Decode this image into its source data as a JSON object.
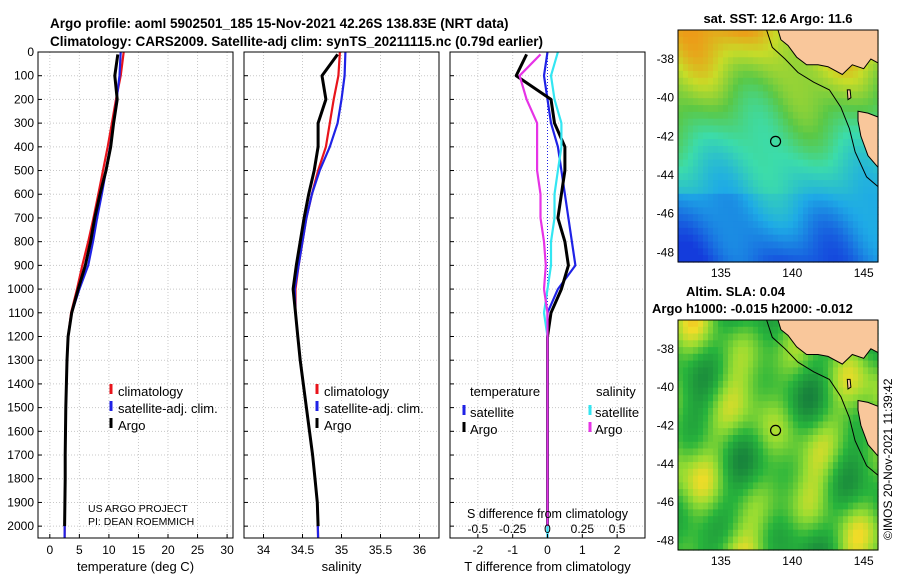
{
  "header": {
    "title_line1": "Argo profile: aoml 5902501_185 15-Nov-2021 42.26S 138.83E (NRT data)",
    "title_line2": "Climatology: CARS2009. Satellite-adj clim: synTS_20211115.nc (0.79d earlier)"
  },
  "colors": {
    "climatology": "#e8141b",
    "satellite_clim": "#1f22e6",
    "argo": "#000000",
    "sat_salinity": "#33e6f2",
    "argo_salinity": "#e633e6"
  },
  "chart_data": [
    {
      "type": "line",
      "id": "temperature",
      "xlabel": "temperature (deg C)",
      "xlim": [
        -2,
        31
      ],
      "ylim": [
        0,
        2050
      ],
      "xticks": [
        0,
        5,
        10,
        15,
        20,
        25,
        30
      ],
      "yticks": [
        0,
        100,
        200,
        300,
        400,
        500,
        600,
        700,
        800,
        900,
        1000,
        1100,
        1200,
        1300,
        1400,
        1500,
        1600,
        1700,
        1800,
        1900,
        2000
      ],
      "grid": true,
      "y_reversed": true,
      "legend": [
        "climatology",
        "satellite-adj. clim.",
        "Argo"
      ],
      "legend_position": "bottom-right",
      "annotations": [
        "US ARGO PROJECT",
        "PI: DEAN ROEMMICH"
      ],
      "series": [
        {
          "name": "climatology",
          "x": [
            12.5,
            12.0,
            11.2,
            10.5,
            9.8,
            9.0,
            8.2,
            7.4,
            6.5,
            5.5,
            4.6,
            3.6,
            3.1,
            2.9,
            2.8,
            2.7,
            2.65,
            2.6,
            2.6,
            2.55,
            2.5
          ],
          "y": [
            0,
            100,
            200,
            300,
            400,
            500,
            600,
            700,
            800,
            900,
            1000,
            1100,
            1200,
            1300,
            1400,
            1500,
            1600,
            1700,
            1800,
            1900,
            2050
          ]
        },
        {
          "name": "satellite-adj. clim.",
          "x": [
            12.0,
            11.8,
            11.3,
            10.8,
            10.2,
            9.5,
            8.8,
            8.0,
            7.3,
            6.5,
            5.0,
            3.7,
            3.1,
            2.9,
            2.8,
            2.7,
            2.65,
            2.6,
            2.6,
            2.55,
            2.5
          ],
          "y": [
            0,
            100,
            200,
            300,
            400,
            500,
            600,
            700,
            800,
            900,
            1000,
            1100,
            1200,
            1300,
            1400,
            1500,
            1600,
            1700,
            1800,
            1900,
            2050
          ]
        },
        {
          "name": "Argo",
          "x": [
            11.5,
            11.0,
            11.4,
            10.8,
            10.3,
            9.5,
            8.5,
            7.6,
            6.9,
            6.0,
            4.8,
            3.7,
            3.1,
            2.9,
            2.8,
            2.7,
            2.65,
            2.6,
            2.6,
            2.55,
            2.5
          ],
          "y": [
            10,
            100,
            200,
            300,
            400,
            500,
            600,
            700,
            800,
            900,
            1000,
            1100,
            1200,
            1300,
            1400,
            1500,
            1600,
            1700,
            1800,
            1900,
            2000
          ]
        }
      ]
    },
    {
      "type": "line",
      "id": "salinity",
      "xlabel": "salinity",
      "xlim": [
        33.75,
        36.25
      ],
      "ylim": [
        0,
        2050
      ],
      "xticks": [
        34,
        34.5,
        35,
        35.5,
        36
      ],
      "grid": true,
      "y_reversed": true,
      "legend": [
        "climatology",
        "satellite-adj. clim.",
        "Argo"
      ],
      "legend_position": "bottom-right",
      "series": [
        {
          "name": "climatology",
          "x": [
            34.98,
            34.96,
            34.9,
            34.85,
            34.8,
            34.7,
            34.62,
            34.55,
            34.5,
            34.45,
            34.41,
            34.41,
            34.44,
            34.47,
            34.51,
            34.55,
            34.59,
            34.63,
            34.66,
            34.69,
            34.7
          ],
          "y": [
            0,
            100,
            200,
            300,
            400,
            500,
            600,
            700,
            800,
            900,
            1000,
            1100,
            1200,
            1300,
            1400,
            1500,
            1600,
            1700,
            1800,
            1900,
            2050
          ]
        },
        {
          "name": "satellite-adj. clim.",
          "x": [
            35.05,
            35.04,
            35.0,
            34.95,
            34.85,
            34.72,
            34.62,
            34.55,
            34.5,
            34.45,
            34.4,
            34.41,
            34.44,
            34.47,
            34.51,
            34.55,
            34.59,
            34.63,
            34.66,
            34.69,
            34.7
          ],
          "y": [
            0,
            100,
            200,
            300,
            400,
            500,
            600,
            700,
            800,
            900,
            1000,
            1100,
            1200,
            1300,
            1400,
            1500,
            1600,
            1700,
            1800,
            1900,
            2050
          ]
        },
        {
          "name": "Argo",
          "x": [
            34.95,
            34.75,
            34.8,
            34.7,
            34.7,
            34.65,
            34.58,
            34.52,
            34.47,
            34.42,
            34.38,
            34.41,
            34.44,
            34.47,
            34.51,
            34.55,
            34.59,
            34.63,
            34.66,
            34.69,
            34.7
          ],
          "y": [
            10,
            100,
            200,
            300,
            400,
            500,
            600,
            700,
            800,
            900,
            1000,
            1100,
            1200,
            1300,
            1400,
            1500,
            1600,
            1700,
            1800,
            1900,
            2000
          ]
        }
      ]
    },
    {
      "type": "line",
      "id": "difference",
      "xlabel": "T difference from climatology",
      "top_label": "S difference from climatology",
      "xlim": [
        -2.8,
        2.8
      ],
      "ylim": [
        0,
        2050
      ],
      "xticks": [
        -2,
        -1,
        0,
        1,
        2
      ],
      "top_ticks": [
        -0.5,
        -0.25,
        0,
        0.25,
        0.5
      ],
      "grid": true,
      "y_reversed": true,
      "legend_temperature": {
        "heading": "temperature",
        "items": [
          "satellite",
          "Argo"
        ]
      },
      "legend_salinity": {
        "heading": "salinity",
        "items": [
          "satellite",
          "Argo"
        ]
      },
      "series": [
        {
          "name": "satellite",
          "x": [
            0.0,
            -0.1,
            0.0,
            0.1,
            0.3,
            0.4,
            0.5,
            0.6,
            0.7,
            0.8,
            0.3,
            0.0,
            0.0,
            0.0,
            0.0,
            0.0,
            0.0,
            0.0,
            0.0,
            0.0,
            0.0
          ],
          "y": [
            0,
            100,
            200,
            300,
            400,
            500,
            600,
            700,
            800,
            900,
            1000,
            1100,
            1200,
            1300,
            1400,
            1500,
            1600,
            1700,
            1800,
            1900,
            2050
          ]
        },
        {
          "name": "Argo",
          "x": [
            -0.6,
            -0.9,
            0.1,
            0.2,
            0.5,
            0.5,
            0.4,
            0.3,
            0.5,
            0.6,
            0.4,
            0.1,
            0.0,
            0.0,
            0.0,
            0.0,
            0.0,
            0.0,
            0.0,
            0.0,
            0.0
          ],
          "y": [
            10,
            100,
            200,
            300,
            400,
            500,
            600,
            700,
            800,
            900,
            1000,
            1100,
            1200,
            1300,
            1400,
            1500,
            1600,
            1700,
            1800,
            1900,
            2000
          ]
        },
        {
          "name": "salinity satellite",
          "x": [
            0.3,
            0.1,
            0.2,
            0.4,
            0.4,
            0.3,
            0.2,
            0.2,
            0.1,
            0.1,
            0.0,
            -0.1,
            0.0,
            0.0,
            0.0,
            0.0,
            0.0,
            0.0,
            0.0,
            0.0,
            0.0
          ],
          "y": [
            0,
            100,
            200,
            300,
            400,
            500,
            600,
            700,
            800,
            900,
            1000,
            1100,
            1200,
            1300,
            1400,
            1500,
            1600,
            1700,
            1800,
            1900,
            2050
          ]
        },
        {
          "name": "salinity Argo",
          "x": [
            -0.2,
            -0.8,
            -0.6,
            -0.3,
            -0.3,
            -0.3,
            -0.2,
            -0.2,
            -0.1,
            -0.05,
            -0.1,
            0.0,
            0.0,
            0.0,
            0.0,
            0.0,
            0.0,
            0.0,
            0.0,
            0.0,
            0.0
          ],
          "y": [
            10,
            100,
            200,
            300,
            400,
            500,
            600,
            700,
            800,
            900,
            1000,
            1100,
            1200,
            1300,
            1400,
            1500,
            1600,
            1700,
            1800,
            1900,
            2000
          ]
        }
      ]
    },
    {
      "type": "heatmap",
      "id": "sst_map",
      "title": "sat. SST: 12.6 Argo: 11.6",
      "xlim": [
        132,
        146
      ],
      "ylim": [
        -48.5,
        -36.5
      ],
      "xticks": [
        135,
        140,
        145
      ],
      "yticks": [
        -38,
        -40,
        -42,
        -44,
        -46,
        -48
      ],
      "marker": {
        "lon": 138.83,
        "lat": -42.26
      }
    },
    {
      "type": "heatmap",
      "id": "sla_map",
      "title_line1": "Altim. SLA: 0.04",
      "title_line2": "Argo h1000: -0.015 h2000: -0.012",
      "xlim": [
        132,
        146
      ],
      "ylim": [
        -48.5,
        -36.5
      ],
      "xticks": [
        135,
        140,
        145
      ],
      "yticks": [
        -38,
        -40,
        -42,
        -44,
        -46,
        -48
      ],
      "marker": {
        "lon": 138.83,
        "lat": -42.26
      }
    }
  ],
  "credit": "©IMOS 20-Nov-2021 11:39:42"
}
